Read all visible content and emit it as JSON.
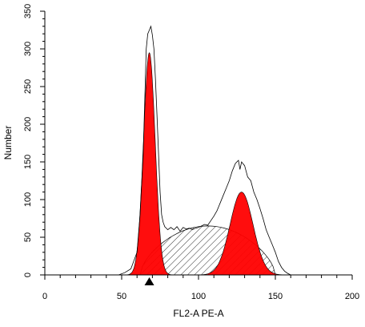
{
  "chart_data": {
    "type": "area",
    "xlabel": "FL2-A PE-A",
    "ylabel": "Number",
    "xlim": [
      0,
      200
    ],
    "ylim": [
      0,
      350
    ],
    "x_ticks": [
      "0",
      "50",
      "100",
      "150",
      "200"
    ],
    "y_ticks": [
      "0",
      "50",
      "100",
      "150",
      "200",
      "250",
      "300",
      "350"
    ],
    "grid": false,
    "legend": "none",
    "marker": {
      "shape": "triangle",
      "x": 68,
      "color": "#000000"
    },
    "colors": {
      "g1_peak": "#ff0000",
      "g2_peak": "#ff0000",
      "s_phase_hatch": "#000000",
      "histogram_line": "#000000"
    },
    "series": [
      {
        "role": "histogram-outline",
        "points": [
          [
            0,
            0
          ],
          [
            48,
            0
          ],
          [
            52,
            3
          ],
          [
            56,
            8
          ],
          [
            60,
            30
          ],
          [
            62,
            80
          ],
          [
            64,
            160
          ],
          [
            65,
            230
          ],
          [
            66,
            300
          ],
          [
            67,
            320
          ],
          [
            68,
            325
          ],
          [
            69,
            330
          ],
          [
            70,
            318
          ],
          [
            71,
            300
          ],
          [
            72,
            260
          ],
          [
            73,
            210
          ],
          [
            74,
            160
          ],
          [
            75,
            110
          ],
          [
            76,
            80
          ],
          [
            77,
            70
          ],
          [
            78,
            64
          ],
          [
            80,
            60
          ],
          [
            82,
            63
          ],
          [
            84,
            60
          ],
          [
            86,
            64
          ],
          [
            88,
            58
          ],
          [
            90,
            63
          ],
          [
            92,
            61
          ],
          [
            94,
            62
          ],
          [
            96,
            60
          ],
          [
            98,
            62
          ],
          [
            100,
            63
          ],
          [
            102,
            65
          ],
          [
            104,
            67
          ],
          [
            106,
            66
          ],
          [
            108,
            72
          ],
          [
            110,
            78
          ],
          [
            112,
            85
          ],
          [
            114,
            95
          ],
          [
            116,
            105
          ],
          [
            118,
            115
          ],
          [
            120,
            125
          ],
          [
            122,
            138
          ],
          [
            124,
            148
          ],
          [
            126,
            152
          ],
          [
            127,
            140
          ],
          [
            128,
            150
          ],
          [
            130,
            145
          ],
          [
            132,
            130
          ],
          [
            134,
            125
          ],
          [
            136,
            110
          ],
          [
            138,
            100
          ],
          [
            140,
            88
          ],
          [
            142,
            75
          ],
          [
            144,
            60
          ],
          [
            146,
            50
          ],
          [
            148,
            40
          ],
          [
            150,
            30
          ],
          [
            152,
            18
          ],
          [
            154,
            10
          ],
          [
            156,
            5
          ],
          [
            158,
            2
          ],
          [
            160,
            0
          ],
          [
            200,
            0
          ]
        ]
      },
      {
        "role": "G1-peak",
        "shape": "gaussian",
        "mean": 68,
        "sd": 3.8,
        "height": 295
      },
      {
        "role": "S-phase",
        "shape": "hatched-plateau",
        "start": 62,
        "end": 150,
        "height": 65
      },
      {
        "role": "G2-peak",
        "shape": "gaussian",
        "mean": 128,
        "sd": 7.5,
        "height": 110
      }
    ]
  }
}
